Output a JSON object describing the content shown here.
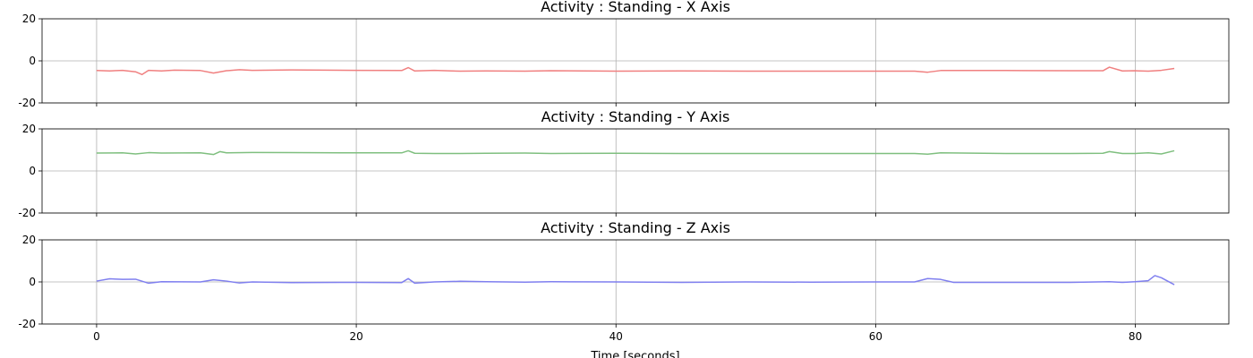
{
  "chart_data": [
    {
      "type": "line",
      "title": "Activity : Standing - X Axis",
      "xlim": [
        -4.2,
        87.2
      ],
      "ylim": [
        -20,
        20
      ],
      "x_ticks": [
        0,
        20,
        40,
        60,
        80
      ],
      "y_ticks": [
        20,
        0,
        -20
      ],
      "grid": true,
      "color": "#f08080",
      "series": [
        {
          "x": [
            0,
            1,
            2,
            3,
            3.5,
            4,
            5,
            6,
            8,
            9,
            10,
            11,
            12,
            15,
            20,
            23.5,
            24,
            24.5,
            26,
            28,
            30,
            33,
            35,
            40,
            45,
            50,
            55,
            60,
            63,
            64,
            65,
            70,
            75,
            77.5,
            78,
            79,
            80,
            81,
            82,
            83
          ],
          "y": [
            -4.6,
            -4.8,
            -4.5,
            -5.2,
            -6.5,
            -4.5,
            -4.8,
            -4.4,
            -4.6,
            -5.8,
            -4.7,
            -4.2,
            -4.5,
            -4.3,
            -4.5,
            -4.6,
            -3.2,
            -4.8,
            -4.5,
            -4.9,
            -4.8,
            -4.9,
            -4.7,
            -4.9,
            -4.8,
            -4.9,
            -4.9,
            -4.9,
            -4.9,
            -5.4,
            -4.6,
            -4.6,
            -4.7,
            -4.7,
            -3.0,
            -4.8,
            -4.7,
            -4.9,
            -4.5,
            -3.6
          ]
        }
      ]
    },
    {
      "type": "line",
      "title": "Activity : Standing - Y Axis",
      "xlim": [
        -4.2,
        87.2
      ],
      "ylim": [
        -20,
        20
      ],
      "x_ticks": [
        0,
        20,
        40,
        60,
        80
      ],
      "y_ticks": [
        20,
        0,
        -20
      ],
      "grid": true,
      "color": "#7fbf7f",
      "series": [
        {
          "x": [
            0,
            2,
            3,
            4,
            5,
            8,
            9,
            9.5,
            10,
            12,
            15,
            20,
            23.5,
            24,
            24.5,
            26,
            28,
            30,
            33,
            35,
            40,
            45,
            50,
            55,
            60,
            63,
            64,
            65,
            70,
            75,
            77.5,
            78,
            79,
            80,
            81,
            82,
            83
          ],
          "y": [
            8.5,
            8.6,
            8.1,
            8.7,
            8.5,
            8.6,
            7.8,
            9.2,
            8.6,
            8.8,
            8.7,
            8.6,
            8.6,
            9.6,
            8.4,
            8.3,
            8.3,
            8.4,
            8.5,
            8.3,
            8.4,
            8.3,
            8.3,
            8.3,
            8.3,
            8.3,
            8.0,
            8.6,
            8.3,
            8.3,
            8.4,
            9.2,
            8.3,
            8.3,
            8.6,
            8.1,
            9.6
          ]
        }
      ]
    },
    {
      "type": "line",
      "title": "Activity : Standing - Z Axis",
      "xlim": [
        -4.2,
        87.2
      ],
      "ylim": [
        -20,
        20
      ],
      "x_ticks": [
        0,
        20,
        40,
        60,
        80
      ],
      "y_ticks": [
        20,
        0,
        -20
      ],
      "grid": true,
      "color": "#7f7fef",
      "series": [
        {
          "x": [
            0,
            1,
            2,
            3,
            4,
            5,
            8,
            9,
            10,
            11,
            12,
            15,
            20,
            23.5,
            24,
            24.5,
            26,
            28,
            30,
            33,
            35,
            40,
            45,
            50,
            55,
            60,
            63,
            64,
            65,
            66,
            70,
            75,
            78,
            79,
            80,
            81,
            81.5,
            82,
            83
          ],
          "y": [
            0.4,
            1.5,
            1.2,
            1.3,
            -0.6,
            0.1,
            0.0,
            1.0,
            0.4,
            -0.5,
            0.0,
            -0.3,
            -0.2,
            -0.3,
            1.6,
            -0.6,
            0.0,
            0.3,
            0.1,
            -0.1,
            0.1,
            0.0,
            -0.2,
            0.0,
            -0.1,
            0.0,
            0.0,
            1.6,
            1.2,
            -0.2,
            -0.2,
            -0.2,
            0.1,
            -0.2,
            0.1,
            0.6,
            3.0,
            2.0,
            -1.3
          ]
        }
      ]
    }
  ],
  "xlabel": "Time [seconds]"
}
